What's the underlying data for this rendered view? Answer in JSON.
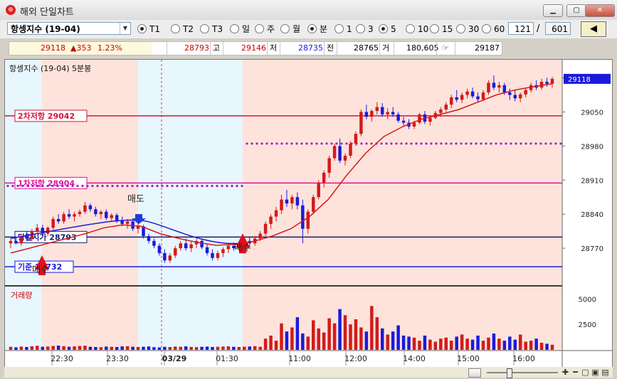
{
  "window": {
    "title": "해외 단일차트",
    "icon_glyph": "⊛"
  },
  "toolbar": {
    "symbol": "항셍지수 (19-04)",
    "sessions": [
      {
        "label": "T1",
        "selected": true
      },
      {
        "label": "T2",
        "selected": false
      },
      {
        "label": "T3",
        "selected": false
      }
    ],
    "periods": [
      {
        "label": "일",
        "selected": false
      },
      {
        "label": "주",
        "selected": false
      },
      {
        "label": "월",
        "selected": false
      },
      {
        "label": "분",
        "selected": true
      }
    ],
    "intervals": [
      {
        "label": "1",
        "selected": false
      },
      {
        "label": "3",
        "selected": false
      },
      {
        "label": "5",
        "selected": true
      },
      {
        "label": "10",
        "selected": false
      },
      {
        "label": "15",
        "selected": false
      },
      {
        "label": "30",
        "selected": false
      },
      {
        "label": "60",
        "selected": false
      }
    ],
    "count": "121",
    "separator": "/",
    "total": "601",
    "prev_label": "◀"
  },
  "quote": {
    "price": "29118",
    "change": "▲353",
    "change_pct": "1.23%",
    "open": "28793",
    "high_label": "고",
    "high": "29146",
    "low_label": "저",
    "low": "28735",
    "prev_label": "전",
    "prev": "28765",
    "vol_label": "거",
    "volume": "180,605",
    "last_icon": "☞",
    "last": "29187"
  },
  "chart": {
    "header": "항셍지수 (19-04)   5분봉",
    "volume_header": "거래량",
    "price_ticks": [
      "29120",
      "29050",
      "28980",
      "28910",
      "28840",
      "28770"
    ],
    "volume_ticks": [
      "5000",
      "2500"
    ],
    "current_price": "29118",
    "time_labels": [
      "22:30",
      "23:30",
      "03/29",
      "01:30",
      "11:00",
      "12:00",
      "14:00",
      "15:00",
      "16:00"
    ],
    "levels": [
      {
        "label": "2차저항 29042",
        "value": 29042,
        "color": "#d4143c"
      },
      {
        "label": "1차저항 28904",
        "value": 28904,
        "color": "#e0109a"
      },
      {
        "label": "당일시가 28793",
        "value": 28793,
        "color": "#1b1b6e"
      },
      {
        "label": "기준 28732",
        "value": 28732,
        "color": "#1a1ae0"
      }
    ],
    "signals": [
      {
        "label": "매도",
        "type": "sell"
      },
      {
        "label": "매수",
        "type": "buy"
      },
      {
        "label": "매수",
        "type": "buy"
      }
    ]
  },
  "chart_data": {
    "type": "candlestick",
    "title": "항셍지수 (19-04)   5분봉",
    "ylim": [
      28700,
      29150
    ],
    "candles": [
      [
        28780,
        28790,
        28770,
        28785
      ],
      [
        28785,
        28795,
        28778,
        28780
      ],
      [
        28780,
        28800,
        28775,
        28795
      ],
      [
        28795,
        28805,
        28785,
        28790
      ],
      [
        28790,
        28810,
        28785,
        28805
      ],
      [
        28805,
        28820,
        28800,
        28812
      ],
      [
        28812,
        28818,
        28795,
        28800
      ],
      [
        28800,
        28815,
        28795,
        28812
      ],
      [
        28812,
        28835,
        28808,
        28830
      ],
      [
        28830,
        28840,
        28820,
        28825
      ],
      [
        28825,
        28845,
        28820,
        28840
      ],
      [
        28840,
        28850,
        28830,
        28835
      ],
      [
        28835,
        28845,
        28825,
        28840
      ],
      [
        28840,
        28850,
        28835,
        28845
      ],
      [
        28845,
        28865,
        28840,
        28858
      ],
      [
        28858,
        28862,
        28845,
        28850
      ],
      [
        28850,
        28855,
        28835,
        28840
      ],
      [
        28840,
        28848,
        28830,
        28845
      ],
      [
        28845,
        28850,
        28828,
        28832
      ],
      [
        28832,
        28842,
        28825,
        28838
      ],
      [
        28838,
        28842,
        28822,
        28826
      ],
      [
        28826,
        28835,
        28815,
        28820
      ],
      [
        28820,
        28830,
        28810,
        28825
      ],
      [
        28825,
        28828,
        28805,
        28810
      ],
      [
        28810,
        28822,
        28800,
        28815
      ],
      [
        28815,
        28818,
        28790,
        28795
      ],
      [
        28795,
        28800,
        28780,
        28785
      ],
      [
        28785,
        28790,
        28770,
        28775
      ],
      [
        28775,
        28780,
        28755,
        28760
      ],
      [
        28760,
        28768,
        28740,
        28745
      ],
      [
        28745,
        28760,
        28740,
        28755
      ],
      [
        28755,
        28775,
        28750,
        28770
      ],
      [
        28770,
        28785,
        28765,
        28780
      ],
      [
        28780,
        28790,
        28765,
        28770
      ],
      [
        28770,
        28785,
        28762,
        28778
      ],
      [
        28778,
        28790,
        28770,
        28785
      ],
      [
        28785,
        28790,
        28768,
        28772
      ],
      [
        28772,
        28778,
        28755,
        28760
      ],
      [
        28760,
        28768,
        28745,
        28750
      ],
      [
        28750,
        28765,
        28745,
        28760
      ],
      [
        28760,
        28772,
        28752,
        28768
      ],
      [
        28768,
        28780,
        28760,
        28775
      ],
      [
        28775,
        28782,
        28765,
        28770
      ],
      [
        28770,
        28785,
        28765,
        28780
      ],
      [
        28780,
        28790,
        28772,
        28785
      ],
      [
        28785,
        28792,
        28775,
        28780
      ],
      [
        28780,
        28795,
        28775,
        28790
      ],
      [
        28790,
        28805,
        28785,
        28800
      ],
      [
        28800,
        28825,
        28795,
        28820
      ],
      [
        28820,
        28840,
        28810,
        28835
      ],
      [
        28835,
        28855,
        28825,
        28848
      ],
      [
        28848,
        28880,
        28840,
        28870
      ],
      [
        28870,
        28890,
        28855,
        28862
      ],
      [
        28862,
        28880,
        28850,
        28875
      ],
      [
        28875,
        28885,
        28850,
        28858
      ],
      [
        28858,
        28870,
        28780,
        28810
      ],
      [
        28810,
        28850,
        28800,
        28845
      ],
      [
        28845,
        28880,
        28840,
        28875
      ],
      [
        28875,
        28910,
        28870,
        28905
      ],
      [
        28905,
        28930,
        28895,
        28925
      ],
      [
        28925,
        28960,
        28915,
        28955
      ],
      [
        28955,
        28985,
        28950,
        28980
      ],
      [
        28980,
        28995,
        28945,
        28950
      ],
      [
        28950,
        28965,
        28940,
        28960
      ],
      [
        28960,
        28990,
        28955,
        28985
      ],
      [
        28985,
        29010,
        28980,
        29005
      ],
      [
        29005,
        29055,
        29000,
        29050
      ],
      [
        29050,
        29065,
        29035,
        29040
      ],
      [
        29040,
        29055,
        29030,
        29052
      ],
      [
        29052,
        29070,
        29045,
        29060
      ],
      [
        29060,
        29068,
        29040,
        29045
      ],
      [
        29045,
        29058,
        29035,
        29050
      ],
      [
        29050,
        29060,
        29040,
        29045
      ],
      [
        29045,
        29050,
        29028,
        29032
      ],
      [
        29032,
        29040,
        29022,
        29028
      ],
      [
        29028,
        29035,
        29015,
        29020
      ],
      [
        29020,
        29032,
        29015,
        29028
      ],
      [
        29028,
        29048,
        29025,
        29045
      ],
      [
        29045,
        29052,
        29025,
        29030
      ],
      [
        29030,
        29042,
        29022,
        29038
      ],
      [
        29038,
        29052,
        29035,
        29048
      ],
      [
        29048,
        29060,
        29040,
        29055
      ],
      [
        29055,
        29070,
        29050,
        29065
      ],
      [
        29065,
        29085,
        29058,
        29080
      ],
      [
        29080,
        29095,
        29070,
        29075
      ],
      [
        29075,
        29090,
        29068,
        29085
      ],
      [
        29085,
        29098,
        29078,
        29092
      ],
      [
        29092,
        29100,
        29078,
        29082
      ],
      [
        29082,
        29090,
        29070,
        29076
      ],
      [
        29076,
        29095,
        29072,
        29090
      ],
      [
        29090,
        29115,
        29085,
        29110
      ],
      [
        29110,
        29125,
        29095,
        29100
      ],
      [
        29100,
        29112,
        29090,
        29105
      ],
      [
        29105,
        29110,
        29085,
        29090
      ],
      [
        29090,
        29098,
        29075,
        29085
      ],
      [
        29085,
        29095,
        29072,
        29078
      ],
      [
        29078,
        29090,
        29070,
        29086
      ],
      [
        29086,
        29100,
        29080,
        29095
      ],
      [
        29095,
        29110,
        29090,
        29105
      ],
      [
        29105,
        29115,
        29095,
        29100
      ],
      [
        29100,
        29118,
        29096,
        29112
      ],
      [
        29112,
        29120,
        29102,
        29108
      ],
      [
        29108,
        29122,
        29100,
        29118
      ]
    ],
    "ma": [
      28760,
      28770,
      28780,
      28790,
      28800,
      28812,
      28818,
      28815,
      28800,
      28790,
      28782,
      28776,
      28778,
      28784,
      28795,
      28810,
      28835,
      28870,
      28920,
      28965,
      29000,
      29020,
      29035,
      29045,
      29055,
      29070,
      29085,
      29095,
      29102,
      29108
    ],
    "volume": [
      300,
      250,
      320,
      280,
      350,
      400,
      300,
      330,
      380,
      420,
      360,
      300,
      340,
      380,
      410,
      300,
      280,
      260,
      320,
      300,
      280,
      340,
      360,
      300,
      280,
      300,
      330,
      260,
      240,
      300,
      280,
      320,
      300,
      340,
      290,
      270,
      300,
      320,
      280,
      300,
      320,
      340,
      300,
      280,
      310,
      330,
      360,
      300,
      1100,
      1400,
      900,
      2600,
      1800,
      2200,
      3200,
      1600,
      1300,
      2900,
      2100,
      1700,
      3100,
      2600,
      4000,
      3400,
      2500,
      3000,
      2200,
      1800,
      4300,
      3200,
      2100,
      1500,
      1800,
      2400,
      1400,
      1300,
      1200,
      900,
      1400,
      1000,
      800,
      1100,
      1200,
      900,
      1300,
      1500,
      1100,
      1000,
      1400,
      900,
      1200,
      1600,
      1100,
      900,
      1300,
      1000,
      1500,
      800,
      900,
      1100,
      700,
      600,
      500
    ],
    "volume_ylim": [
      0,
      6000
    ]
  }
}
